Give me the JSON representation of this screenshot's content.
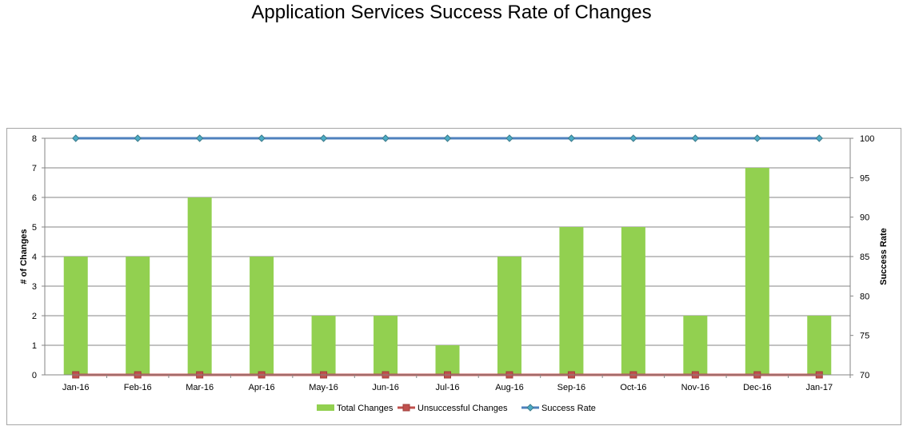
{
  "chart_data": {
    "type": "bar",
    "title": "Application Services Success Rate of Changes",
    "categories": [
      "Jan-16",
      "Feb-16",
      "Mar-16",
      "Apr-16",
      "May-16",
      "Jun-16",
      "Jul-16",
      "Aug-16",
      "Sep-16",
      "Oct-16",
      "Nov-16",
      "Dec-16",
      "Jan-17"
    ],
    "series": [
      {
        "name": "Total Changes",
        "kind": "bar",
        "axis": "left",
        "color": "#92d050",
        "values": [
          4,
          4,
          6,
          4,
          2,
          2,
          1,
          4,
          5,
          5,
          2,
          7,
          2
        ]
      },
      {
        "name": "Unsuccessful Changes",
        "kind": "line",
        "axis": "left",
        "color": "#c0504d",
        "marker": "square",
        "values": [
          0,
          0,
          0,
          0,
          0,
          0,
          0,
          0,
          0,
          0,
          0,
          0,
          0
        ]
      },
      {
        "name": "Success Rate",
        "kind": "line",
        "axis": "right",
        "color": "#4f81bd",
        "marker": "diamond",
        "values": [
          100,
          100,
          100,
          100,
          100,
          100,
          100,
          100,
          100,
          100,
          100,
          100,
          100
        ]
      }
    ],
    "ylabel": "# of Changes",
    "ylim": [
      0,
      8
    ],
    "yticks": [
      "0",
      "1",
      "2",
      "3",
      "4",
      "5",
      "6",
      "7",
      "8"
    ],
    "y2label": "Success Rate",
    "y2lim": [
      70,
      100
    ],
    "y2ticks": [
      "70",
      "75",
      "80",
      "85",
      "90",
      "95",
      "100"
    ],
    "grid": true,
    "legend_position": "bottom"
  }
}
